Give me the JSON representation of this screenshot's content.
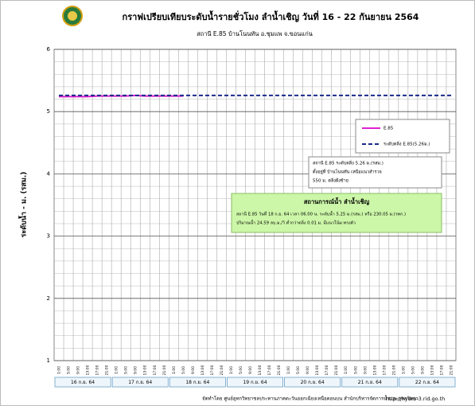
{
  "chart_data": {
    "type": "line",
    "title": "กราฟเปรียบเทียบระดับน้ำรายชั่วโมง  ลำน้ำเชิญ วันที่ 16 - 22 กันยายน 2564",
    "subtitle": "สถานี E.85 บ้านโนนทัน อ.ชุมแพ จ.ขอนแก่น",
    "y_label": "ระดับน้ำ  -  ม. (รสม.)",
    "categories": [
      "1:00",
      "5:00",
      "9:00",
      "13:00",
      "17:00",
      "21:00",
      "1:00",
      "5:00",
      "9:00",
      "13:00",
      "17:00",
      "21:00",
      "1:00",
      "5:00",
      "9:00",
      "13:00",
      "17:00",
      "21:00",
      "1:00",
      "5:00",
      "9:00",
      "13:00",
      "17:00",
      "21:00",
      "1:00",
      "5:00",
      "9:00",
      "13:00",
      "17:00",
      "21:00",
      "1:00",
      "5:00",
      "9:00",
      "13:00",
      "17:00",
      "21:00",
      "1:00",
      "5:00",
      "9:00",
      "13:00",
      "17:00",
      "21:00"
    ],
    "days": [
      "16 ก.ย. 64",
      "17 ก.ย. 64",
      "18 ก.ย. 64",
      "19 ก.ย. 64",
      "20 ก.ย. 64",
      "21 ก.ย. 64",
      "22 ก.ย. 64"
    ],
    "series": [
      {
        "name": "E.85",
        "color": "#e020d0",
        "dash": false,
        "values": [
          5.24,
          5.24,
          5.24,
          5.24,
          5.25,
          5.25,
          5.25,
          5.25,
          5.26,
          5.25,
          5.25,
          5.25,
          5.25,
          5.25,
          null,
          null,
          null,
          null,
          null,
          null,
          null,
          null,
          null,
          null,
          null,
          null,
          null,
          null,
          null,
          null,
          null,
          null,
          null,
          null,
          null,
          null,
          null,
          null,
          null,
          null,
          null,
          null
        ]
      },
      {
        "name": "ระดับตลิ่ง E.85(5.26ม.)",
        "color": "#1a2a8a",
        "dash": true,
        "values": [
          5.26,
          5.26,
          5.26,
          5.26,
          5.26,
          5.26,
          5.26,
          5.26,
          5.26,
          5.26,
          5.26,
          5.26,
          5.26,
          5.26,
          5.26,
          5.26,
          5.26,
          5.26,
          5.26,
          5.26,
          5.26,
          5.26,
          5.26,
          5.26,
          5.26,
          5.26,
          5.26,
          5.26,
          5.26,
          5.26,
          5.26,
          5.26,
          5.26,
          5.26,
          5.26,
          5.26,
          5.26,
          5.26,
          5.26,
          5.26,
          5.26,
          5.26
        ]
      }
    ],
    "ylim": [
      1,
      6
    ],
    "yticks": [
      1,
      2,
      3,
      4,
      5,
      6
    ],
    "grid": true,
    "annotations": [
      "สถานี E.85 ระดับตลิ่ง  5.26 ม.(รสม.)",
      "ตั้งอยู่ที่ บ้านโนนทัน  เหนือแนวสำรวจ",
      "550  ม. ตลิ่งฝั่งซ้าย"
    ],
    "status_box": {
      "title": "สถานการณ์น้ำ  ลำน้ำเชิญ",
      "lines": [
        "สถานี E.85 วันที่  18 ก.ย. 64 เวลา 06.00 น. ระดับน้ำ 5.25  ม.(รสม.) หรือ 230.05 ม.(รทก.)",
        "ปริมาณน้ำ 24.59   ลบ.ม./วิ ต่ำกว่าตลิ่ง   0.01 ม. มีแนวโน้ม  ทรงตัว"
      ]
    },
    "footer": "จัดทำโดย ศูนย์อุทกวิทยาชลประทานภาคตะวันออกเฉียงเหนือตอนบน สำนักบริหารจัดการน้ำและอุทกวิทยา",
    "url": "http://hydro-3.rid.go.th"
  }
}
